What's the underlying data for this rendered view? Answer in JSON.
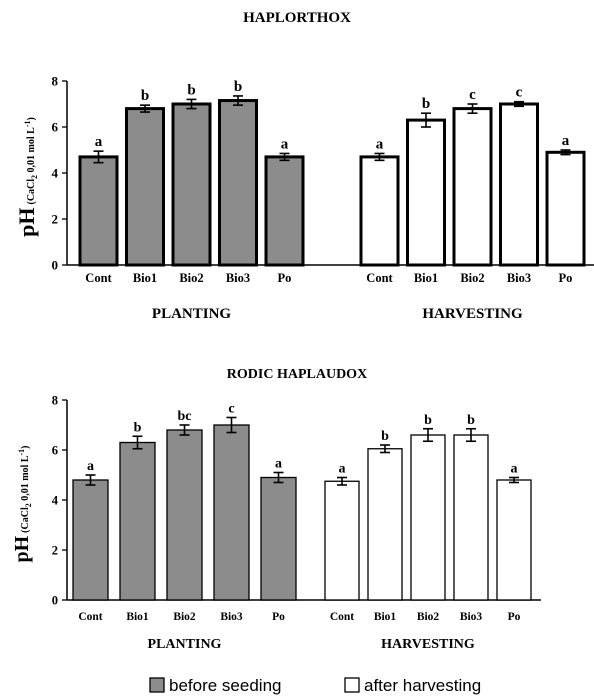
{
  "chart_data": [
    {
      "type": "bar",
      "title": "HAPLORTHOX",
      "ylabel_main": "pH",
      "ylabel_sub_parts": [
        "(CaCl",
        "2",
        " 0,01 mol L",
        "-1",
        ")"
      ],
      "ylim": [
        0,
        8
      ],
      "yticks": [
        "0",
        "2",
        "4",
        "6",
        "8"
      ],
      "groups": [
        {
          "name": "PLANTING",
          "series": "before seeding",
          "categories": [
            "Cont",
            "Bio1",
            "Bio2",
            "Bio3",
            "Po"
          ],
          "values": [
            4.7,
            6.8,
            7.0,
            7.15,
            4.7
          ],
          "errors": [
            0.25,
            0.15,
            0.2,
            0.2,
            0.15
          ],
          "letters": [
            "a",
            "b",
            "b",
            "b",
            "a"
          ]
        },
        {
          "name": "HARVESTING",
          "series": "after harvesting",
          "categories": [
            "Cont",
            "Bio1",
            "Bio2",
            "Bio3",
            "Po"
          ],
          "values": [
            4.7,
            6.3,
            6.8,
            7.0,
            4.9
          ],
          "errors": [
            0.15,
            0.3,
            0.2,
            0.1,
            0.1
          ],
          "letters": [
            "a",
            "b",
            "c",
            "c",
            "a"
          ]
        }
      ]
    },
    {
      "type": "bar",
      "title": "RODIC HAPLAUDOX",
      "ylabel_main": "pH",
      "ylabel_sub_parts": [
        "(CaCl",
        "2",
        " 0,01 mol L",
        "-1",
        ")"
      ],
      "ylim": [
        0,
        8
      ],
      "yticks": [
        "0",
        "2",
        "4",
        "6",
        "8"
      ],
      "groups": [
        {
          "name": "PLANTING",
          "series": "before seeding",
          "categories": [
            "Cont",
            "Bio1",
            "Bio2",
            "Bio3",
            "Po"
          ],
          "values": [
            4.8,
            6.3,
            6.8,
            7.0,
            4.9
          ],
          "errors": [
            0.2,
            0.25,
            0.2,
            0.3,
            0.2
          ],
          "letters": [
            "a",
            "b",
            "bc",
            "c",
            "a"
          ]
        },
        {
          "name": "HARVESTING",
          "series": "after harvesting",
          "categories": [
            "Cont",
            "Bio1",
            "Bio2",
            "Bio3",
            "Po"
          ],
          "values": [
            4.75,
            6.05,
            6.6,
            6.6,
            4.8
          ],
          "errors": [
            0.15,
            0.15,
            0.25,
            0.25,
            0.1
          ],
          "letters": [
            "a",
            "b",
            "b",
            "b",
            "a"
          ]
        }
      ]
    }
  ],
  "legend": {
    "items": [
      {
        "label": "before seeding",
        "fill": "#8c8c8c"
      },
      {
        "label": "after harvesting",
        "fill": "#ffffff"
      }
    ]
  },
  "colors": {
    "before_seeding": "#8c8c8c",
    "after_harvesting": "#ffffff",
    "stroke": "#000000"
  }
}
